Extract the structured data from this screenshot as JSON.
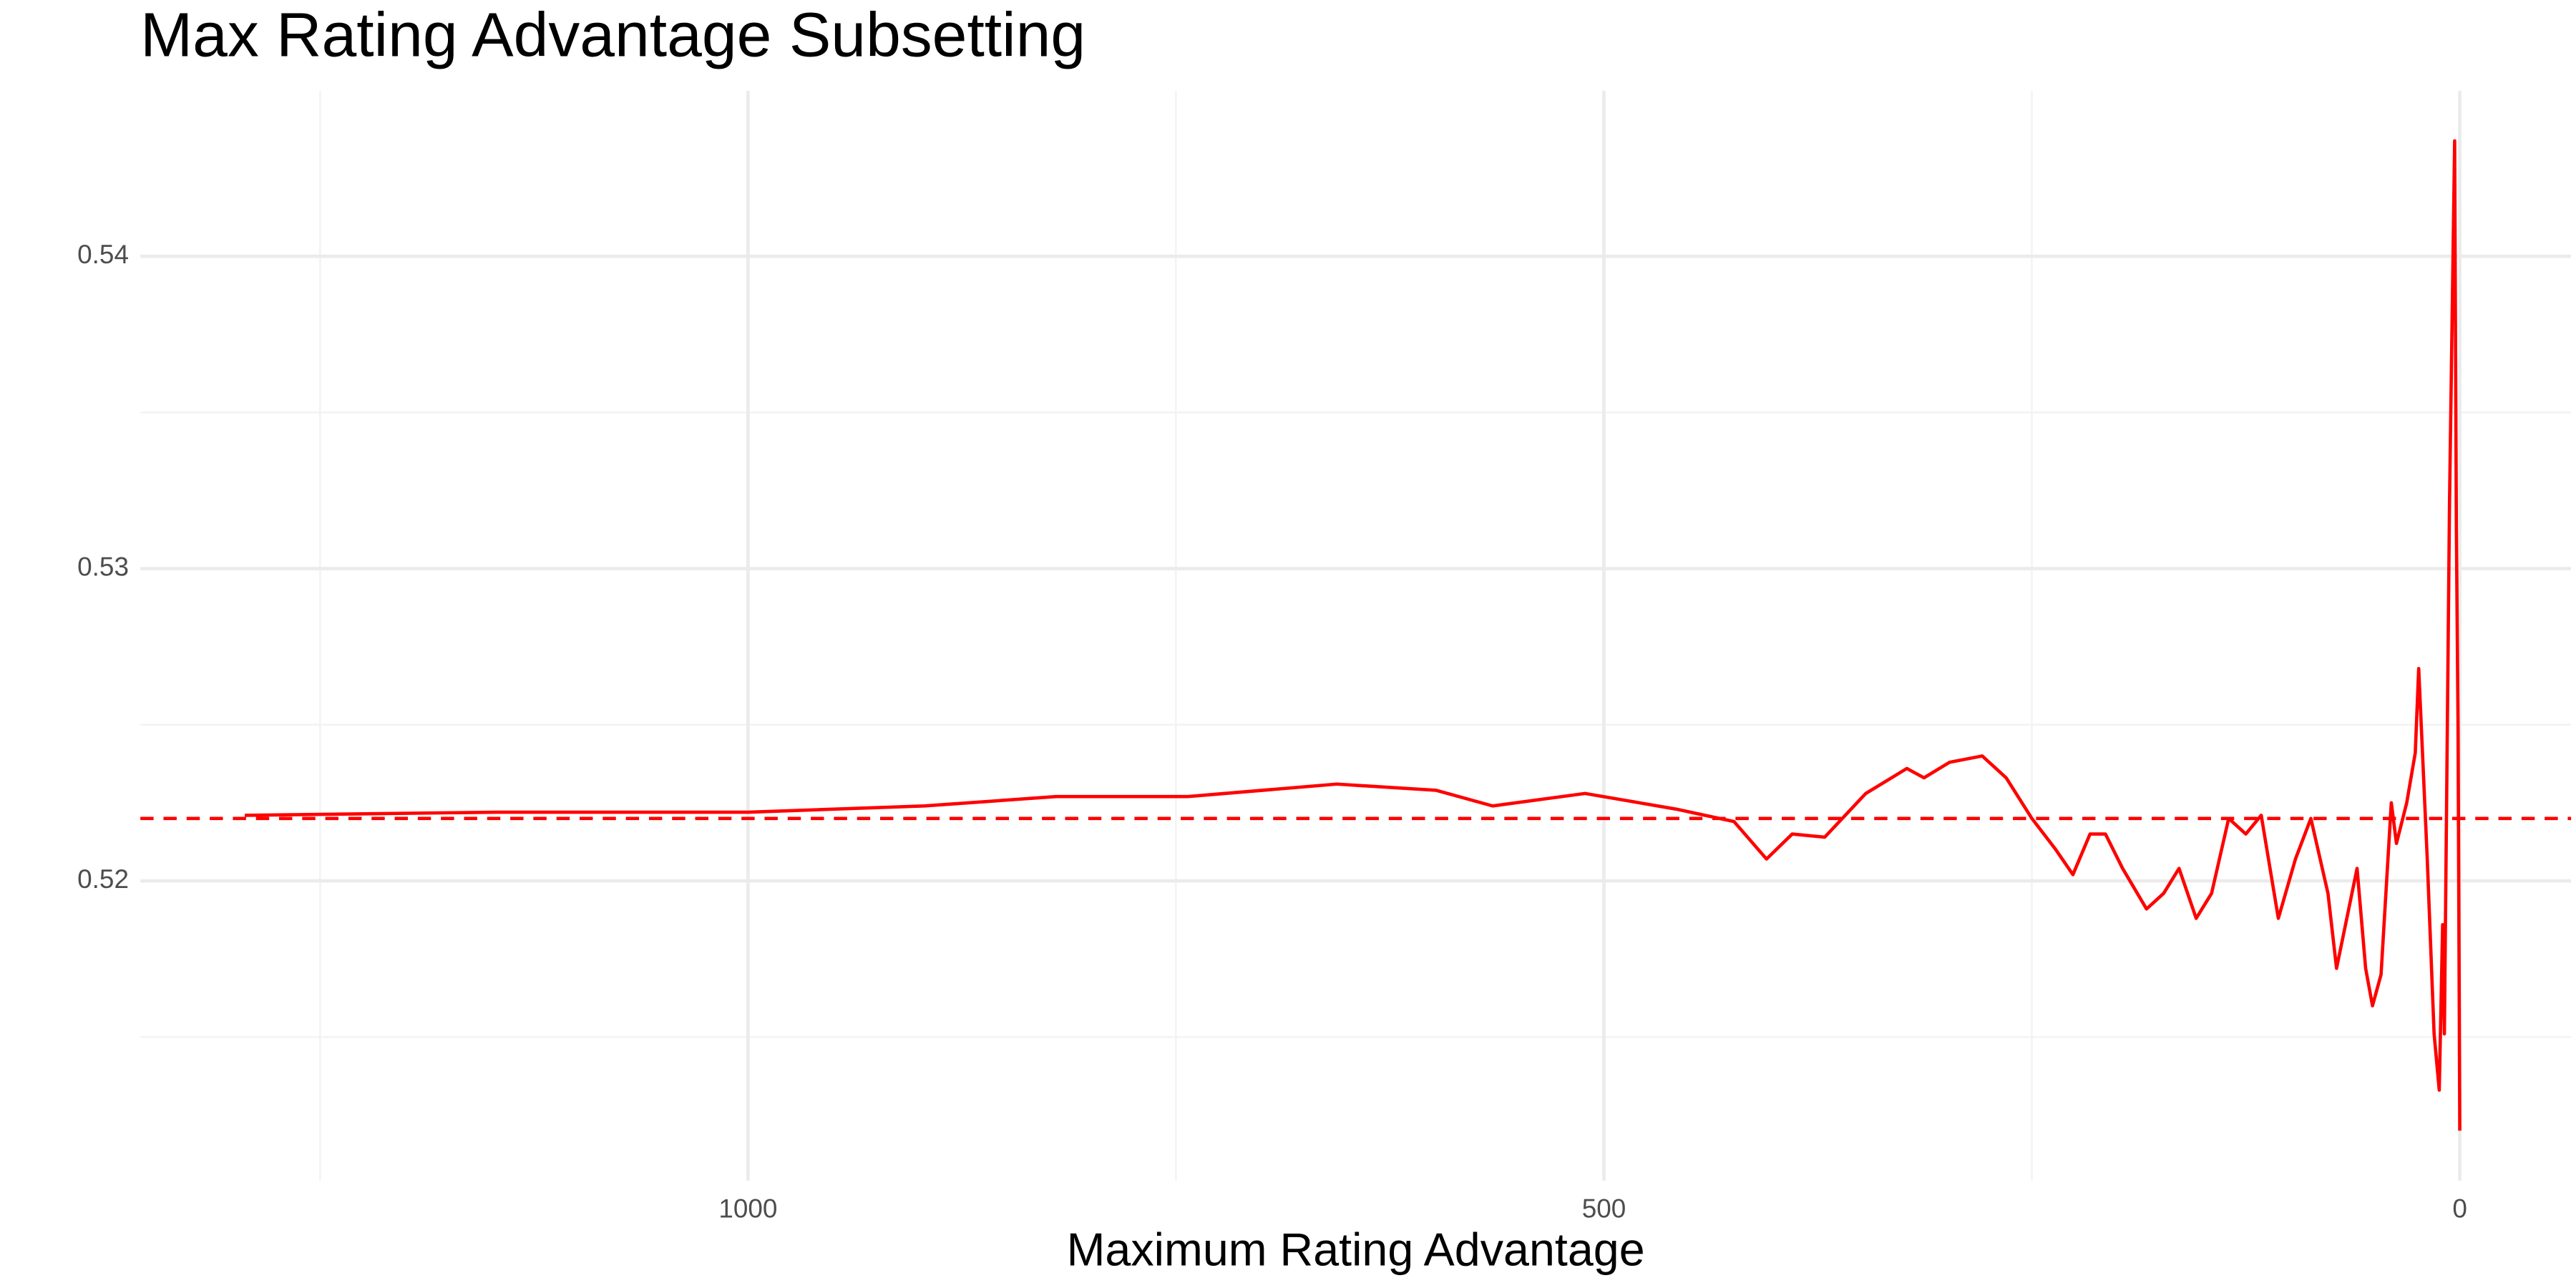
{
  "chart_data": {
    "type": "line",
    "title": "Max Rating Advantage Subsetting",
    "xlabel": "Maximum Rating Advantage",
    "x": [
      1294,
      1147,
      1000,
      897,
      820,
      743,
      656,
      598,
      565,
      511,
      458,
      424,
      405,
      390,
      371,
      347,
      323,
      313,
      298,
      279,
      265,
      250,
      236,
      226,
      216,
      207,
      197,
      183,
      173,
      164,
      154,
      145,
      135,
      125,
      116,
      106,
      96,
      87,
      77,
      72,
      60,
      55,
      51,
      46,
      40,
      37,
      31,
      26,
      24,
      19,
      15,
      12,
      10,
      9,
      6,
      3,
      2,
      1,
      0
    ],
    "values": [
      0.5221,
      0.5222,
      0.5222,
      0.5224,
      0.5227,
      0.5227,
      0.5231,
      0.5229,
      0.5224,
      0.5228,
      0.5223,
      0.5219,
      0.5207,
      0.5215,
      0.5214,
      0.5228,
      0.5236,
      0.5233,
      0.5238,
      0.524,
      0.5233,
      0.522,
      0.521,
      0.5202,
      0.5215,
      0.5215,
      0.5204,
      0.5191,
      0.5196,
      0.5204,
      0.5188,
      0.5196,
      0.522,
      0.5215,
      0.5221,
      0.5188,
      0.5207,
      0.522,
      0.5196,
      0.5172,
      0.5204,
      0.5172,
      0.516,
      0.517,
      0.5225,
      0.5212,
      0.5225,
      0.5241,
      0.5268,
      0.5207,
      0.5151,
      0.5133,
      0.5186,
      0.5151,
      0.5321,
      0.5437,
      0.5313,
      0.5249,
      0.512
    ],
    "color": "#ff0000",
    "hline": 0.522,
    "xlim": [
      1355,
      -65
    ],
    "xticks": [
      1000,
      500,
      0
    ],
    "xminor": [
      1250,
      750,
      250
    ],
    "ylim": [
      0.5104,
      0.5453
    ],
    "yticks": [
      0.52,
      0.53,
      0.54
    ],
    "yminor": [
      0.515,
      0.525,
      0.535
    ],
    "grid": true
  }
}
